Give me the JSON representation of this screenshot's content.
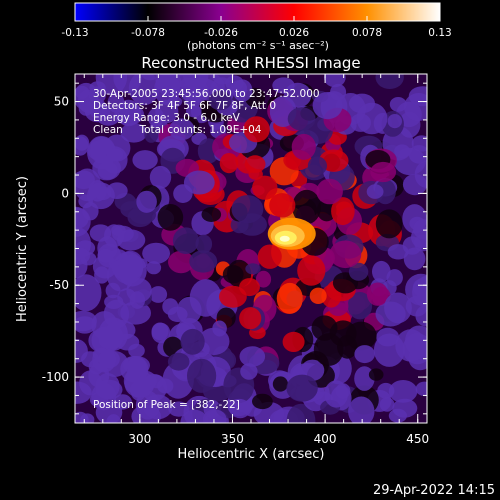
{
  "colorbar": {
    "tick_labels": [
      "-0.13",
      "-0.078",
      "-0.026",
      "0.026",
      "0.078",
      "0.13"
    ],
    "tick_values": [
      -0.13,
      -0.078,
      -0.026,
      0.026,
      0.078,
      0.13
    ],
    "range": [
      -0.13,
      0.13
    ],
    "units_label": "(photons cm⁻² s⁻¹ asec⁻²)",
    "colors": [
      "#0000ff",
      "#000000",
      "#8a0090",
      "#ff0000",
      "#ff9000",
      "#ffffff"
    ]
  },
  "chart_data": {
    "type": "heatmap",
    "title": "Reconstructed RHESSI Image",
    "xlabel": "Heliocentric X (arcsec)",
    "ylabel": "Heliocentric Y (arcsec)",
    "xlim": [
      265,
      455
    ],
    "ylim": [
      -125,
      65
    ],
    "x_ticks": [
      300,
      350,
      400,
      450
    ],
    "x_tick_labels": [
      "300",
      "350",
      "400",
      "450"
    ],
    "y_ticks": [
      50,
      0,
      -50,
      -100
    ],
    "y_tick_labels": [
      "50",
      "0",
      "-50",
      "-100"
    ],
    "annotations": [
      "30-Apr-2005 23:45:56.000 to 23:47:52.000",
      "Detectors: 3F 4F 5F 6F 7F 8F, Att 0",
      "Energy Range: 3.0 - 6.0 keV",
      "Clean     Total counts: 1.09E+04"
    ],
    "peak_label": "Position of Peak = [382,-22]",
    "peak": [
      382,
      -22
    ],
    "colorscale_min": -0.13,
    "colorscale_max": 0.13
  },
  "footer": {
    "timestamp": "29-Apr-2022 14:15"
  }
}
